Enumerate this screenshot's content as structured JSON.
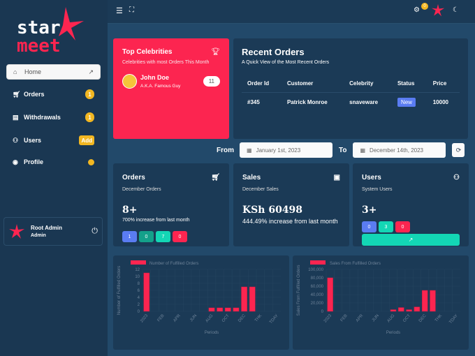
{
  "brand": {
    "logo_line1": "star",
    "logo_line2": "meet"
  },
  "sidebar": {
    "items": [
      {
        "label": "Home",
        "icon": "home-icon",
        "trail_icon": "trend-icon"
      },
      {
        "label": "Orders",
        "icon": "cart-icon",
        "badge": "1"
      },
      {
        "label": "Withdrawals",
        "icon": "receipt-icon",
        "badge": "1"
      },
      {
        "label": "Users",
        "icon": "users-icon",
        "badge": "Add"
      },
      {
        "label": "Profile",
        "icon": "user-circle-icon"
      }
    ],
    "user": {
      "name": "Root Admin",
      "role": "Admin"
    }
  },
  "topbar": {
    "notification_count": "0"
  },
  "top_celebrities": {
    "title": "Top Celebrities",
    "subtitle": "Celebrities with most Orders This Month",
    "celeb": {
      "name": "John Doe",
      "alias": "A.K.A. Famous Guy",
      "count": "11"
    }
  },
  "recent_orders": {
    "title": "Recent Orders",
    "subtitle": "A Quick View of the Most Recent Orders",
    "columns": [
      "Order Id",
      "Customer",
      "Celebrity",
      "Status",
      "Price"
    ],
    "rows": [
      {
        "id": "#345",
        "customer": "Patrick Monroe",
        "celebrity": "snaveware",
        "status": "New",
        "price": "10000"
      }
    ]
  },
  "date_filter": {
    "from_label": "From",
    "from": "January 1st, 2023",
    "to_label": "To",
    "to": "December 14th, 2023"
  },
  "stats": {
    "orders": {
      "title": "Orders",
      "subtitle": "December Orders",
      "value": "8+",
      "change": "700% increase from last month",
      "pills": [
        "1",
        "0",
        "7",
        "0"
      ]
    },
    "sales": {
      "title": "Sales",
      "subtitle": "December Sales",
      "value": "KSh 60498",
      "change": "444.49% increase from last month"
    },
    "users": {
      "title": "Users",
      "subtitle": "System Users",
      "value": "3+",
      "pills": [
        "0",
        "3",
        "0"
      ]
    }
  },
  "colors": {
    "accent": "#fc2550",
    "blue": "#5a7cf2",
    "teal": "#14a08a",
    "mint": "#13d6b5",
    "yellow": "#f2b722"
  },
  "chart_data": [
    {
      "type": "bar",
      "legend": "Number of Fulfilled Orders",
      "ylabel": "Number of Fulfilled Orders",
      "xlabel": "Periods",
      "ylim": [
        0,
        12
      ],
      "yticks": [
        "0",
        "2",
        "4",
        "6",
        "8",
        "10",
        "12"
      ],
      "categories": [
        "2023",
        "",
        "FEB",
        "",
        "APR",
        "",
        "JUN",
        "",
        "AUG",
        "",
        "OCT",
        "",
        "DEC",
        "",
        "THK",
        "",
        "TDAY"
      ],
      "values": [
        11,
        0,
        0,
        0,
        0,
        0,
        0,
        0,
        1,
        1,
        1,
        1,
        7,
        7,
        0,
        0,
        0
      ],
      "legend_position": "top",
      "grid": true
    },
    {
      "type": "bar",
      "legend": "Sales From Fulfilled Orders",
      "ylabel": "Sales From Fulfilled Orders",
      "xlabel": "Periods",
      "ylim": [
        0,
        100000
      ],
      "yticks": [
        "0",
        "20,000",
        "40,000",
        "60,000",
        "80,000",
        "100,000"
      ],
      "categories": [
        "2023",
        "",
        "FEB",
        "",
        "APR",
        "",
        "JUN",
        "",
        "AUG",
        "",
        "OCT",
        "",
        "DEC",
        "",
        "THK",
        "",
        "TDAY"
      ],
      "values": [
        80000,
        0,
        0,
        0,
        0,
        0,
        0,
        0,
        4000,
        9000,
        4000,
        10500,
        50000,
        50000,
        0,
        0,
        0
      ],
      "legend_position": "top",
      "grid": true
    }
  ]
}
